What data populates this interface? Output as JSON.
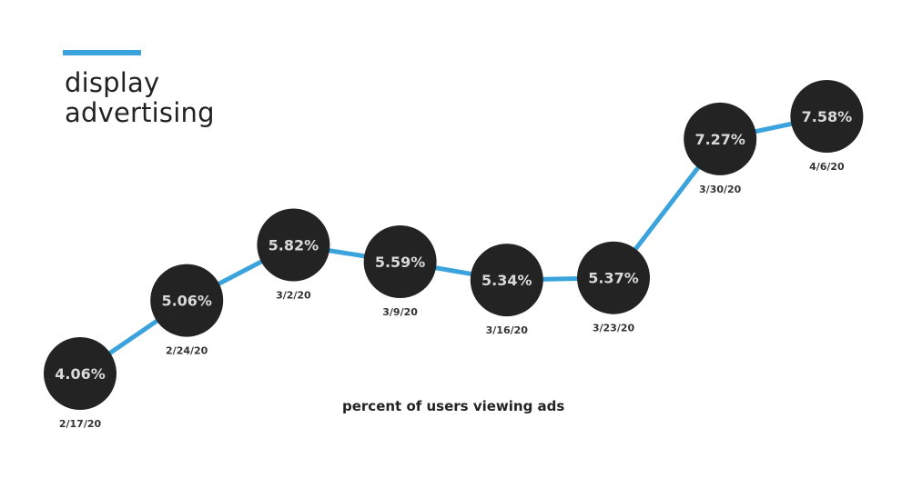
{
  "title": {
    "line1": "display",
    "line2": "advertising"
  },
  "caption": "percent of users viewing ads",
  "colors": {
    "line": "#3aa3dc",
    "accent": "#3aa3dc",
    "bubble": "#232323",
    "value_text": "#d9d9d9",
    "date_text": "#333333"
  },
  "chart_data": {
    "type": "line",
    "title": "display advertising",
    "xlabel": "percent of users viewing ads",
    "ylabel": "",
    "categories": [
      "2/17/20",
      "2/24/20",
      "3/2/20",
      "3/9/20",
      "3/16/20",
      "3/23/20",
      "3/30/20",
      "4/6/20"
    ],
    "values": [
      4.06,
      5.06,
      5.82,
      5.59,
      5.34,
      5.37,
      7.27,
      7.58
    ],
    "value_labels": [
      "4.06%",
      "5.06%",
      "5.82%",
      "5.59%",
      "5.34%",
      "5.37%",
      "7.27%",
      "7.58%"
    ],
    "ylim": [
      4.06,
      7.58
    ],
    "grid": false,
    "legend": "none"
  }
}
